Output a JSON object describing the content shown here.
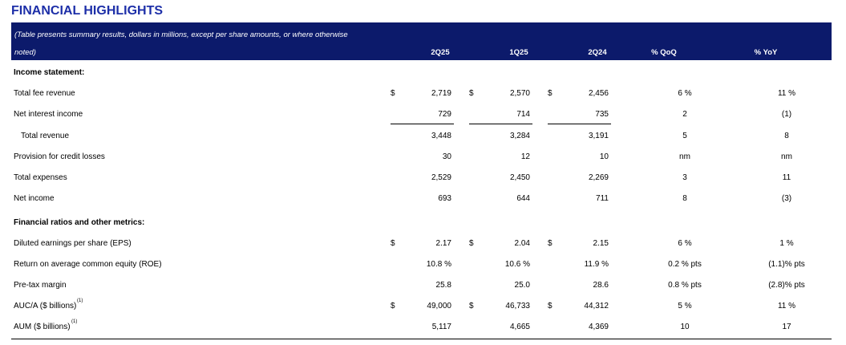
{
  "title": "FINANCIAL HIGHLIGHTS",
  "header": {
    "note_line1": "(Table presents summary results, dollars in millions, except per share amounts, or where otherwise",
    "note_line2": "noted)",
    "columns": [
      "2Q25",
      "1Q25",
      "2Q24",
      "% QoQ",
      "% YoY"
    ]
  },
  "sections": {
    "income": "Income statement:",
    "ratios": "Financial ratios and other metrics:"
  },
  "rows": [
    {
      "label": "Total fee revenue",
      "d": true,
      "v": [
        "2,719",
        "2,570",
        "2,456"
      ],
      "qoq": "6 %",
      "yoy": "11 %"
    },
    {
      "label": "Net interest income",
      "d": false,
      "v": [
        "729",
        "714",
        "735"
      ],
      "qoq": "2",
      "yoy": "(1)"
    },
    {
      "label": "Total revenue",
      "d": false,
      "v": [
        "3,448",
        "3,284",
        "3,191"
      ],
      "qoq": "5",
      "yoy": "8"
    },
    {
      "label": "Provision for credit losses",
      "d": false,
      "v": [
        "30",
        "12",
        "10"
      ],
      "qoq": "nm",
      "yoy": "nm"
    },
    {
      "label": "Total expenses",
      "d": false,
      "v": [
        "2,529",
        "2,450",
        "2,269"
      ],
      "qoq": "3",
      "yoy": "11"
    },
    {
      "label": "Net income",
      "d": false,
      "v": [
        "693",
        "644",
        "711"
      ],
      "qoq": "8",
      "yoy": "(3)"
    },
    {
      "label": "Diluted earnings per share (EPS)",
      "d": true,
      "v": [
        "2.17",
        "2.04",
        "2.15"
      ],
      "qoq": "6 %",
      "yoy": "1 %"
    },
    {
      "label": "Return on average common equity (ROE)",
      "d": false,
      "v": [
        "10.8 %",
        "10.6 %",
        "11.9 %"
      ],
      "qoq": "0.2 % pts",
      "yoy": "(1.1)% pts"
    },
    {
      "label": "Pre-tax margin",
      "d": false,
      "v": [
        "25.8",
        "25.0",
        "28.6"
      ],
      "qoq": "0.8 % pts",
      "yoy": "(2.8)% pts"
    },
    {
      "label": "AUC/A ($ billions)",
      "sup": "(1)",
      "d": true,
      "v": [
        "49,000",
        "46,733",
        "44,312"
      ],
      "qoq": "5 %",
      "yoy": "11 %"
    },
    {
      "label": "AUM ($ billions)",
      "sup": "(1)",
      "d": false,
      "v": [
        "5,117",
        "4,665",
        "4,369"
      ],
      "qoq": "10",
      "yoy": "17"
    }
  ],
  "dollar_sign": "$"
}
